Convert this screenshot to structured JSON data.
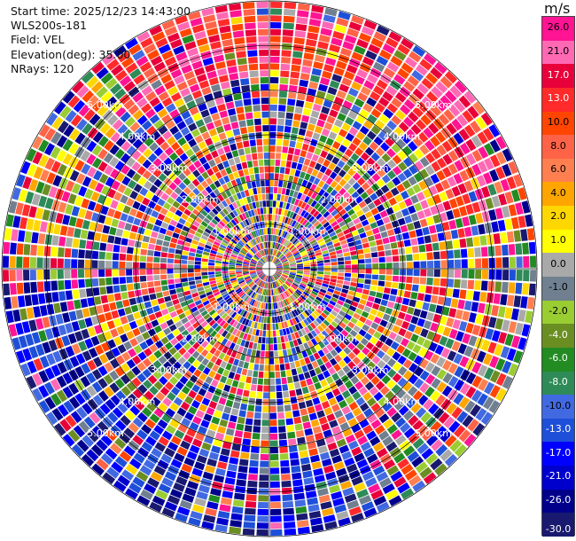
{
  "header": {
    "start_time": "Start time: 2025/12/23 14:43:00",
    "instrument": "WLS200s-181",
    "field": "Field: VEL",
    "elevation": "Elevation(deg): 35.00",
    "nrays": "NRays: 120"
  },
  "chart_data": {
    "type": "ppi",
    "field": "VEL",
    "n_rays": 120,
    "elevation_deg": 35.0,
    "range_rings": [
      "1.00km",
      "2.00km",
      "3.00km",
      "4.00km",
      "5.00km"
    ],
    "colorbar": {
      "unit": "m/s",
      "ticks": [
        "26.0",
        "21.0",
        "17.0",
        "13.0",
        "10.0",
        "8.0",
        "6.0",
        "4.0",
        "2.0",
        "1.0",
        "0.0",
        "-1.0",
        "-2.0",
        "-4.0",
        "-6.0",
        "-8.0",
        "-10.0",
        "-13.0",
        "-17.0",
        "-21.0",
        "-26.0",
        "-30.0"
      ],
      "colors": [
        "#ff1493",
        "#ff69b4",
        "#e8003a",
        "#ff2a2a",
        "#ff4500",
        "#ff6347",
        "#ff7f50",
        "#ffa500",
        "#ffd700",
        "#ffff00",
        "#a9a9a9",
        "#708090",
        "#9acd32",
        "#6b8e23",
        "#228b22",
        "#2e8b57",
        "#4169e1",
        "#1e4fd8",
        "#0000ff",
        "#0000cd",
        "#00008b",
        "#191970"
      ]
    }
  }
}
